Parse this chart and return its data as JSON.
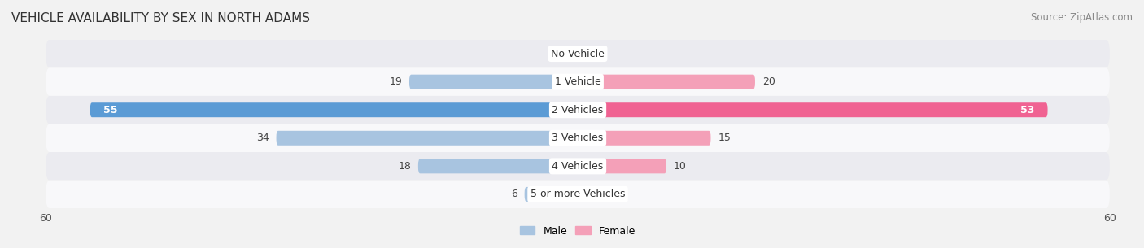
{
  "title": "VEHICLE AVAILABILITY BY SEX IN NORTH ADAMS",
  "source": "Source: ZipAtlas.com",
  "categories": [
    "No Vehicle",
    "1 Vehicle",
    "2 Vehicles",
    "3 Vehicles",
    "4 Vehicles",
    "5 or more Vehicles"
  ],
  "male_values": [
    0,
    19,
    55,
    34,
    18,
    6
  ],
  "female_values": [
    0,
    20,
    53,
    15,
    10,
    0
  ],
  "male_color_light": "#a8c4e0",
  "male_color_dark": "#5b9bd5",
  "female_color_light": "#f4a0b8",
  "female_color_dark": "#f06292",
  "bar_height": 0.52,
  "xlim": 60,
  "background_color": "#f2f2f2",
  "row_color_light": "#ebebf0",
  "row_color_dark": "#f8f8fa",
  "legend_male": "Male",
  "legend_female": "Female",
  "title_fontsize": 11,
  "source_fontsize": 8.5,
  "label_fontsize": 9,
  "category_fontsize": 9,
  "axis_label_fontsize": 9,
  "inside_label_threshold": 8
}
